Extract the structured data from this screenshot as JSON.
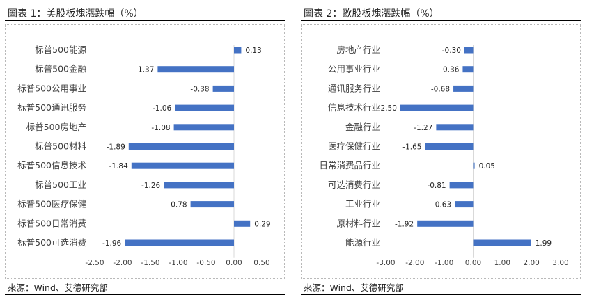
{
  "left": {
    "title": "圖表 1：美股板塊漲跌幅（%）",
    "source": "來源：Wind、艾德研究部"
  },
  "right": {
    "title": "圖表 2：歐股板塊漲跌幅（%）",
    "source": "來源：Wind、艾德研究部"
  },
  "chart_data": [
    {
      "type": "bar",
      "orientation": "horizontal",
      "title": "圖表 1：美股板塊漲跌幅（%）",
      "categories": [
        "标普500能源",
        "标普500金融",
        "标普500公用事业",
        "标普500通讯服务",
        "标普500房地产",
        "标普500材料",
        "标普500信息技术",
        "标普500工业",
        "标普500医疗保健",
        "标普500日常消费",
        "标普500可选消费"
      ],
      "values": [
        0.13,
        -1.37,
        -0.38,
        -1.06,
        -1.08,
        -1.89,
        -1.84,
        -1.26,
        -0.78,
        0.29,
        -1.96
      ],
      "value_labels": [
        "0.13",
        "-1.37",
        "-0.38",
        "-1.06",
        "-1.08",
        "-1.89",
        "-1.84",
        "-1.26",
        "-0.78",
        "0.29",
        "-1.96"
      ],
      "xlim": [
        -2.5,
        0.5
      ],
      "xticks": [
        -2.5,
        -2.0,
        -1.5,
        -1.0,
        -0.5,
        0.0,
        0.5
      ],
      "xtick_labels": [
        "-2.50",
        "-2.00",
        "-1.50",
        "-1.00",
        "-0.50",
        "0.00",
        "0.50"
      ],
      "grid": false,
      "color": "#4472c4"
    },
    {
      "type": "bar",
      "orientation": "horizontal",
      "title": "圖表 2：歐股板塊漲跌幅（%）",
      "categories": [
        "房地产行业",
        "公用事业行业",
        "通讯服务行业",
        "信息技术行业",
        "金融行业",
        "医疗保健行业",
        "日常消费品行业",
        "可选消费行业",
        "工业行业",
        "原材料行业",
        "能源行业"
      ],
      "values": [
        -0.3,
        -0.36,
        -0.68,
        -2.5,
        -1.27,
        -1.65,
        0.05,
        -0.81,
        -0.63,
        -1.92,
        1.99
      ],
      "value_labels": [
        "-0.30",
        "-0.36",
        "-0.68",
        "-2.50",
        "-1.27",
        "-1.65",
        "0.05",
        "-0.81",
        "-0.63",
        "-1.92",
        "1.99"
      ],
      "xlim": [
        -3.0,
        3.0
      ],
      "xticks": [
        -3.0,
        -2.0,
        -1.0,
        0.0,
        1.0,
        2.0,
        3.0
      ],
      "xtick_labels": [
        "-3.00",
        "-2.00",
        "-1.00",
        "0.00",
        "1.00",
        "2.00",
        "3.00"
      ],
      "grid": false,
      "color": "#4472c4"
    }
  ]
}
